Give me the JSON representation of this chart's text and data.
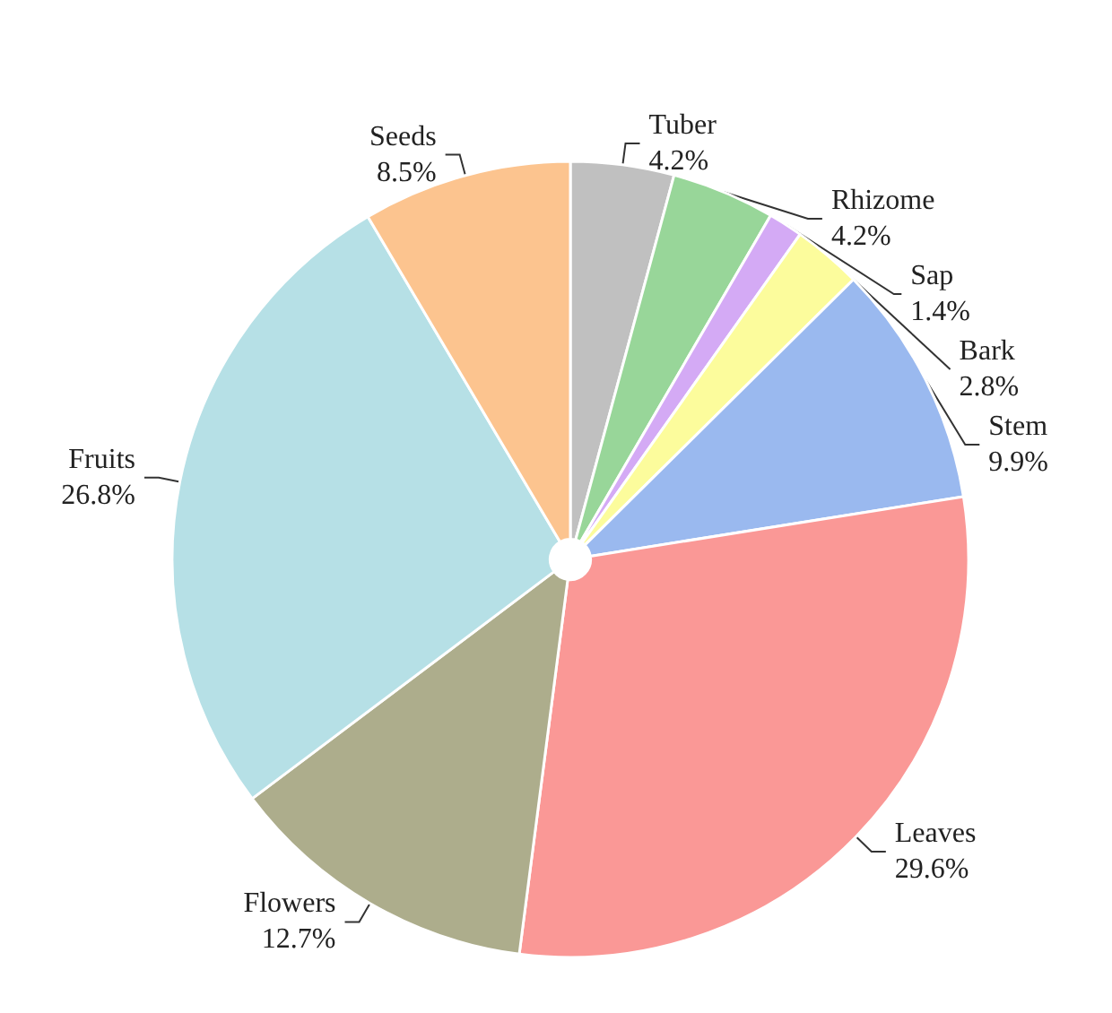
{
  "chart_data": {
    "type": "pie",
    "categories": [
      "Tuber",
      "Rhizome",
      "Sap",
      "Bark",
      "Stem",
      "Leaves",
      "Flowers",
      "Fruits",
      "Seeds"
    ],
    "values": [
      4.2,
      4.2,
      1.4,
      2.8,
      9.9,
      29.6,
      12.7,
      26.8,
      8.5
    ],
    "value_labels": [
      "4.2%",
      "4.2%",
      "1.4%",
      "2.8%",
      "9.9%",
      "29.6%",
      "12.7%",
      "26.8%",
      "8.5%"
    ],
    "colors": [
      "#c0c0c0",
      "#98d699",
      "#d4aaf5",
      "#fcfc9c",
      "#9ab9ef",
      "#fa9896",
      "#adad8c",
      "#b6e0e6",
      "#fcc48f"
    ],
    "legend": false
  }
}
